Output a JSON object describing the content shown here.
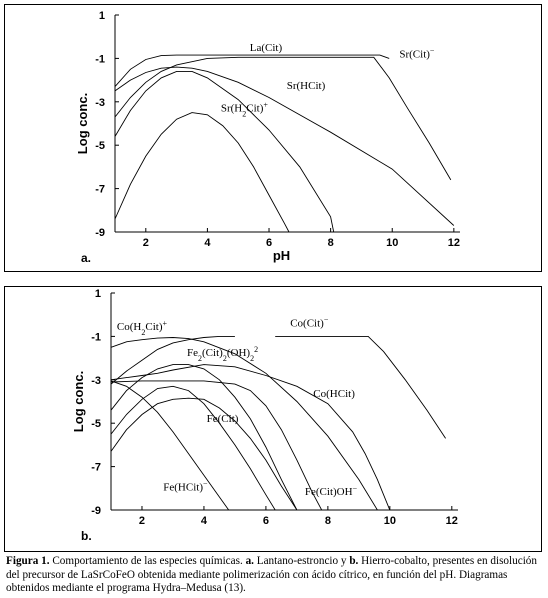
{
  "chart_data": [
    {
      "type": "line",
      "panel_label": "a.",
      "xlabel": "pH",
      "ylabel": "Log conc.",
      "xlim": [
        1,
        12.2
      ],
      "ylim": [
        -9,
        1
      ],
      "xticks": [
        2,
        4,
        6,
        8,
        10,
        12
      ],
      "yticks": [
        1,
        -1,
        -3,
        -5,
        -7,
        -9
      ],
      "grid": false,
      "series": [
        {
          "name": "La(Cit)",
          "label_at": [
            5.9,
            -0.65
          ],
          "points": [
            [
              1.0,
              -2.3
            ],
            [
              1.5,
              -1.5
            ],
            [
              2.0,
              -1.05
            ],
            [
              2.5,
              -0.87
            ],
            [
              3,
              -0.85
            ],
            [
              5,
              -0.85
            ],
            [
              7,
              -0.85
            ],
            [
              9,
              -0.85
            ],
            [
              9.6,
              -0.85
            ],
            [
              9.9,
              -1.0
            ]
          ]
        },
        {
          "name": "Sr(Cit)",
          "label_at": [
            10.8,
            -0.95
          ],
          "points": [
            [
              1.0,
              -3.7
            ],
            [
              1.5,
              -2.8
            ],
            [
              2,
              -2.1
            ],
            [
              2.5,
              -1.6
            ],
            [
              3,
              -1.3
            ],
            [
              4,
              -1.0
            ],
            [
              5,
              -0.95
            ],
            [
              6,
              -0.95
            ],
            [
              8,
              -0.95
            ],
            [
              9.4,
              -0.95
            ],
            [
              9.9,
              -1.9
            ],
            [
              10.5,
              -3.3
            ],
            [
              11.2,
              -4.9
            ],
            [
              11.9,
              -6.6
            ]
          ]
        },
        {
          "name": "Sr(HCit)",
          "label_at": [
            7.2,
            -2.4
          ],
          "points": [
            [
              1.0,
              -2.5
            ],
            [
              1.5,
              -2.0
            ],
            [
              2,
              -1.65
            ],
            [
              2.5,
              -1.45
            ],
            [
              3,
              -1.4
            ],
            [
              3.5,
              -1.45
            ],
            [
              4,
              -1.6
            ],
            [
              5,
              -2.1
            ],
            [
              6,
              -2.8
            ],
            [
              8,
              -4.4
            ],
            [
              10,
              -6.1
            ],
            [
              12,
              -8.7
            ]
          ]
        },
        {
          "name": "Sr(H2Cit)",
          "label_at": [
            5.2,
            -3.45
          ],
          "points": [
            [
              1.0,
              -4.6
            ],
            [
              1.5,
              -3.4
            ],
            [
              2,
              -2.5
            ],
            [
              2.5,
              -1.9
            ],
            [
              3,
              -1.6
            ],
            [
              3.5,
              -1.6
            ],
            [
              4,
              -1.9
            ],
            [
              5,
              -2.9
            ],
            [
              6,
              -4.3
            ],
            [
              7,
              -6.0
            ],
            [
              8,
              -8.3
            ],
            [
              8.1,
              -9.0
            ]
          ]
        },
        {
          "name": "",
          "points": [
            [
              1.0,
              -8.4
            ],
            [
              1.5,
              -6.8
            ],
            [
              2,
              -5.5
            ],
            [
              2.5,
              -4.5
            ],
            [
              3,
              -3.8
            ],
            [
              3.5,
              -3.5
            ],
            [
              4,
              -3.6
            ],
            [
              4.5,
              -4.1
            ],
            [
              5,
              -4.9
            ],
            [
              5.5,
              -6.0
            ],
            [
              6,
              -7.3
            ],
            [
              6.5,
              -8.6
            ],
            [
              6.65,
              -9.0
            ]
          ]
        }
      ]
    },
    {
      "type": "line",
      "panel_label": "b.",
      "xlabel": "",
      "ylabel": "Log conc.",
      "xlim": [
        1,
        12.2
      ],
      "ylim": [
        -9,
        1
      ],
      "xticks": [
        2,
        4,
        6,
        8,
        10,
        12
      ],
      "yticks": [
        1,
        -1,
        -3,
        -5,
        -7,
        -9
      ],
      "grid": false,
      "series": [
        {
          "name": "Co(H2Cit)",
          "label_at": [
            2.0,
            -0.7
          ],
          "points": [
            [
              1.0,
              -1.5
            ],
            [
              1.5,
              -1.25
            ],
            [
              2,
              -1.15
            ],
            [
              2.5,
              -1.08
            ],
            [
              3,
              -1.05
            ],
            [
              3.5,
              -1.1
            ],
            [
              4,
              -1.25
            ],
            [
              5,
              -1.8
            ],
            [
              6,
              -2.7
            ],
            [
              7,
              -4.0
            ],
            [
              8,
              -5.6
            ],
            [
              9,
              -7.6
            ],
            [
              9.6,
              -9.0
            ]
          ]
        },
        {
          "name": "Co(Cit)",
          "label_at": [
            7.4,
            -0.55
          ],
          "points": [
            [
              6.3,
              -1.0
            ],
            [
              9.3,
              -1.0
            ],
            [
              9.8,
              -1.7
            ],
            [
              10.5,
              -3.0
            ],
            [
              11.2,
              -4.4
            ],
            [
              11.8,
              -5.7
            ]
          ]
        },
        {
          "name": "Fe2(Cit)2(OH)2",
          "label_at": [
            4.6,
            -1.9
          ],
          "points": [
            [
              1.0,
              -3.2
            ],
            [
              1.5,
              -2.6
            ],
            [
              2,
              -2.1
            ],
            [
              2.5,
              -1.6
            ],
            [
              3,
              -1.3
            ],
            [
              3.5,
              -1.15
            ],
            [
              4,
              -1.05
            ],
            [
              4.5,
              -1.0
            ],
            [
              5,
              -1.0
            ]
          ]
        },
        {
          "name": "Co(HCit)",
          "label_at": [
            8.2,
            -3.8
          ],
          "points": [
            [
              1.0,
              -3.0
            ],
            [
              1.5,
              -2.9
            ],
            [
              2,
              -2.8
            ],
            [
              2.5,
              -2.7
            ],
            [
              3,
              -2.55
            ],
            [
              4,
              -2.3
            ],
            [
              5,
              -2.4
            ],
            [
              6,
              -2.8
            ],
            [
              7,
              -3.3
            ],
            [
              8,
              -4.1
            ],
            [
              8.8,
              -5.4
            ],
            [
              9.2,
              -6.4
            ],
            [
              9.6,
              -7.6
            ],
            [
              10,
              -9.0
            ]
          ]
        },
        {
          "name": "Fe(Cit)",
          "label_at": [
            4.6,
            -4.95
          ],
          "points": [
            [
              1.0,
              -3.1
            ],
            [
              2,
              -3.05
            ],
            [
              3,
              -3.05
            ],
            [
              4,
              -3.05
            ],
            [
              5,
              -3.2
            ],
            [
              5.5,
              -3.5
            ],
            [
              6,
              -4.2
            ],
            [
              6.5,
              -5.3
            ],
            [
              7,
              -6.7
            ],
            [
              7.5,
              -8.2
            ],
            [
              7.8,
              -9.0
            ]
          ]
        },
        {
          "name": "Fe(HCit)",
          "label_at": [
            3.4,
            -8.1
          ],
          "points": [
            [
              1.0,
              -3.05
            ],
            [
              1.5,
              -3.3
            ],
            [
              2,
              -3.8
            ],
            [
              2.5,
              -4.5
            ],
            [
              3,
              -5.4
            ],
            [
              3.5,
              -6.4
            ],
            [
              4,
              -7.4
            ],
            [
              4.5,
              -8.4
            ],
            [
              4.8,
              -9.0
            ]
          ]
        },
        {
          "name": "Fe(Cit)OH",
          "label_at": [
            8.1,
            -8.3
          ],
          "points": [
            [
              1.0,
              -6.3
            ],
            [
              1.5,
              -5.3
            ],
            [
              2,
              -4.6
            ],
            [
              2.5,
              -4.1
            ],
            [
              3,
              -3.9
            ],
            [
              3.5,
              -3.85
            ],
            [
              4,
              -3.9
            ],
            [
              4.5,
              -4.3
            ],
            [
              5,
              -4.9
            ],
            [
              5.5,
              -5.7
            ],
            [
              6,
              -6.7
            ],
            [
              6.5,
              -7.9
            ],
            [
              7,
              -9.0
            ]
          ]
        },
        {
          "name": "",
          "points": [
            [
              1.0,
              -5.5
            ],
            [
              1.5,
              -4.6
            ],
            [
              2,
              -3.9
            ],
            [
              2.5,
              -3.4
            ],
            [
              3,
              -3.3
            ],
            [
              3.5,
              -3.5
            ],
            [
              4,
              -4.1
            ],
            [
              4.5,
              -5.0
            ],
            [
              5,
              -6.0
            ],
            [
              5.5,
              -7.1
            ],
            [
              6,
              -8.3
            ],
            [
              6.3,
              -9.0
            ]
          ]
        },
        {
          "name": "",
          "points": [
            [
              1.0,
              -4.4
            ],
            [
              1.5,
              -3.5
            ],
            [
              2,
              -2.9
            ],
            [
              2.5,
              -2.5
            ],
            [
              3,
              -2.3
            ],
            [
              3.5,
              -2.3
            ],
            [
              4,
              -2.5
            ],
            [
              4.5,
              -3.0
            ],
            [
              5,
              -3.8
            ],
            [
              5.5,
              -4.8
            ],
            [
              6,
              -6.1
            ],
            [
              6.5,
              -7.6
            ],
            [
              7,
              -9.0
            ]
          ]
        }
      ]
    }
  ],
  "caption": {
    "fig": "Figura 1.",
    "p1": " Comportamiento de las especies químicas. ",
    "a": "a.",
    "p2": " Lantano-estroncio y ",
    "b": "b.",
    "p3": " Hierro-cobalto, presentes en disolución del precursor de LaSrCoFeO obtenida mediante polimerización con ácido cítrico, en función del pH. Diagramas obtenidos mediante el programa Hydra–Medusa (13)."
  }
}
